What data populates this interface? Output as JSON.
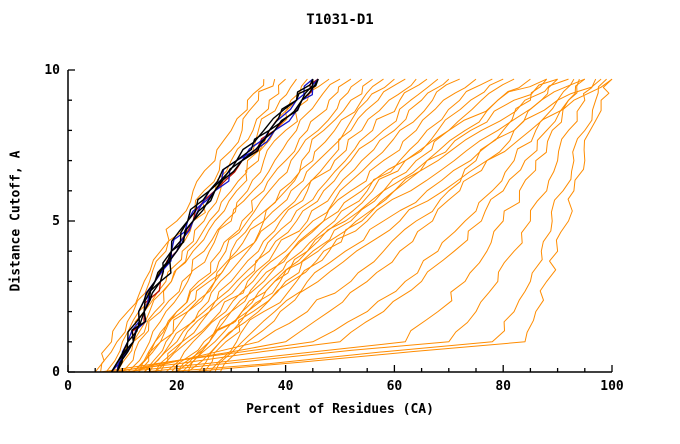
{
  "chart_data": {
    "type": "line",
    "title": "T1031-D1",
    "xlabel": "Percent of Residues (CA)",
    "ylabel": "Distance Cutoff, A",
    "xlim": [
      0,
      100
    ],
    "ylim": [
      0,
      10
    ],
    "x_ticks": [
      0,
      20,
      40,
      60,
      80,
      100
    ],
    "y_ticks": [
      0,
      5,
      10
    ],
    "x_minor_step": 5,
    "y_minor_step": 1,
    "grid": "off",
    "legend": "none",
    "colors": {
      "decoy": "#ff8c00",
      "best": "#000000",
      "ref": "#1414cc",
      "alt": "#bb1100",
      "axis": "#000000"
    },
    "y_grid": [
      0,
      1,
      2,
      3,
      4,
      5,
      6,
      7,
      8,
      9,
      9.7
    ],
    "series": [
      {
        "group": "decoy",
        "x": [
          5,
          8,
          11,
          14,
          17,
          20,
          23,
          27,
          30,
          33,
          36
        ]
      },
      {
        "group": "decoy",
        "x": [
          6,
          9,
          12,
          15,
          18,
          22,
          25,
          28,
          32,
          35,
          38
        ]
      },
      {
        "group": "decoy",
        "x": [
          7,
          10,
          13,
          16,
          20,
          23,
          27,
          30,
          34,
          37,
          40
        ]
      },
      {
        "group": "decoy",
        "x": [
          8,
          11,
          14,
          18,
          21,
          25,
          28,
          32,
          35,
          39,
          42
        ]
      },
      {
        "group": "decoy",
        "x": [
          8,
          12,
          15,
          19,
          22,
          26,
          30,
          33,
          37,
          41,
          44
        ]
      },
      {
        "group": "decoy",
        "x": [
          9,
          12,
          16,
          19,
          23,
          27,
          31,
          35,
          38,
          42,
          46
        ]
      },
      {
        "group": "decoy",
        "x": [
          10,
          13,
          17,
          21,
          25,
          29,
          33,
          36,
          40,
          44,
          48
        ]
      },
      {
        "group": "decoy",
        "x": [
          11,
          15,
          18,
          22,
          26,
          30,
          34,
          38,
          42,
          46,
          50
        ]
      },
      {
        "group": "decoy",
        "x": [
          12,
          16,
          20,
          24,
          28,
          32,
          36,
          40,
          44,
          48,
          52
        ]
      },
      {
        "group": "decoy",
        "x": [
          12,
          16,
          20,
          25,
          29,
          33,
          37,
          41,
          46,
          50,
          54
        ]
      },
      {
        "group": "decoy",
        "x": [
          13,
          17,
          21,
          26,
          30,
          34,
          39,
          43,
          47,
          52,
          56
        ]
      },
      {
        "group": "decoy",
        "x": [
          14,
          18,
          22,
          27,
          31,
          36,
          40,
          45,
          49,
          54,
          58
        ]
      },
      {
        "group": "decoy",
        "x": [
          13,
          17,
          22,
          27,
          32,
          36,
          41,
          46,
          51,
          55,
          60
        ]
      },
      {
        "group": "decoy",
        "x": [
          14,
          19,
          24,
          28,
          33,
          38,
          43,
          48,
          52,
          57,
          62
        ]
      },
      {
        "group": "decoy",
        "x": [
          15,
          20,
          25,
          30,
          35,
          39,
          44,
          49,
          54,
          59,
          64
        ]
      },
      {
        "group": "decoy",
        "x": [
          16,
          21,
          26,
          31,
          36,
          41,
          46,
          51,
          56,
          61,
          66
        ]
      },
      {
        "group": "decoy",
        "x": [
          16,
          21,
          26,
          32,
          37,
          42,
          47,
          52,
          58,
          63,
          68
        ]
      },
      {
        "group": "decoy",
        "x": [
          17,
          22,
          28,
          33,
          38,
          44,
          49,
          54,
          60,
          65,
          70
        ]
      },
      {
        "group": "decoy",
        "x": [
          18,
          23,
          29,
          34,
          40,
          45,
          50,
          56,
          61,
          67,
          72
        ]
      },
      {
        "group": "decoy",
        "x": [
          19,
          25,
          30,
          36,
          41,
          47,
          52,
          58,
          64,
          69,
          75
        ]
      },
      {
        "group": "decoy",
        "x": [
          20,
          26,
          32,
          37,
          43,
          49,
          55,
          61,
          66,
          72,
          78
        ]
      },
      {
        "group": "decoy",
        "x": [
          20,
          26,
          32,
          38,
          44,
          50,
          56,
          62,
          68,
          74,
          80
        ]
      },
      {
        "group": "decoy",
        "x": [
          21,
          27,
          33,
          39,
          45,
          52,
          58,
          64,
          70,
          76,
          82
        ]
      },
      {
        "group": "decoy",
        "x": [
          22,
          28,
          35,
          41,
          47,
          54,
          60,
          66,
          73,
          79,
          85
        ]
      },
      {
        "group": "decoy",
        "x": [
          22,
          26,
          30,
          35,
          41,
          47,
          54,
          62,
          70,
          79,
          88
        ]
      },
      {
        "group": "decoy",
        "x": [
          24,
          28,
          33,
          38,
          44,
          51,
          58,
          66,
          74,
          82,
          90
        ]
      },
      {
        "group": "decoy",
        "x": [
          25,
          29,
          34,
          40,
          46,
          53,
          60,
          68,
          76,
          84,
          92
        ]
      },
      {
        "group": "decoy",
        "x": [
          26,
          31,
          36,
          42,
          48,
          55,
          63,
          71,
          79,
          87,
          95
        ]
      },
      {
        "group": "decoy",
        "x": [
          27,
          32,
          38,
          44,
          51,
          58,
          66,
          74,
          82,
          90,
          98
        ]
      },
      {
        "group": "decoy",
        "x": [
          28,
          33,
          39,
          46,
          53,
          61,
          69,
          77,
          85,
          93,
          100
        ]
      },
      {
        "group": "decoy",
        "x": [
          10,
          62,
          68,
          73,
          77,
          80,
          83,
          86,
          89,
          92,
          94
        ]
      },
      {
        "group": "decoy",
        "x": [
          14,
          70,
          75,
          79,
          82,
          85,
          88,
          90,
          92,
          95,
          97
        ]
      },
      {
        "group": "decoy",
        "x": [
          18,
          78,
          82,
          85,
          87,
          89,
          91,
          93,
          95,
          97,
          99
        ]
      },
      {
        "group": "decoy",
        "x": [
          22,
          84,
          86,
          88,
          90,
          92,
          93,
          95,
          96,
          98,
          100
        ]
      },
      {
        "group": "decoy",
        "x": [
          6,
          45,
          55,
          62,
          68,
          73,
          78,
          82,
          86,
          90,
          93
        ]
      },
      {
        "group": "decoy",
        "x": [
          7,
          50,
          58,
          65,
          71,
          76,
          80,
          84,
          88,
          92,
          95
        ]
      },
      {
        "group": "decoy",
        "x": [
          9,
          40,
          48,
          55,
          61,
          67,
          72,
          77,
          82,
          87,
          90
        ]
      },
      {
        "group": "decoy",
        "x": [
          11,
          35,
          44,
          52,
          58,
          64,
          70,
          75,
          80,
          85,
          88
        ]
      },
      {
        "group": "alt",
        "x": [
          9,
          12,
          14,
          17,
          20,
          23,
          27,
          32,
          38,
          43,
          46
        ]
      },
      {
        "group": "ref",
        "x": [
          8,
          11,
          13,
          16,
          19,
          22,
          27,
          32,
          37,
          42,
          45
        ]
      },
      {
        "group": "ref",
        "x": [
          9,
          12,
          14,
          16,
          20,
          23,
          26,
          31,
          38,
          43,
          46
        ]
      },
      {
        "group": "best",
        "x": [
          8,
          11,
          13,
          16,
          19,
          22,
          26,
          31,
          36,
          42,
          45
        ]
      },
      {
        "group": "best",
        "x": [
          9,
          12,
          14,
          17,
          20,
          23,
          27,
          32,
          38,
          43,
          46
        ]
      },
      {
        "group": "best",
        "x": [
          8,
          11,
          14,
          16,
          19,
          23,
          27,
          32,
          37,
          42,
          46
        ]
      },
      {
        "group": "best",
        "x": [
          9,
          12,
          14,
          17,
          19,
          22,
          26,
          31,
          37,
          43,
          45
        ]
      }
    ]
  }
}
